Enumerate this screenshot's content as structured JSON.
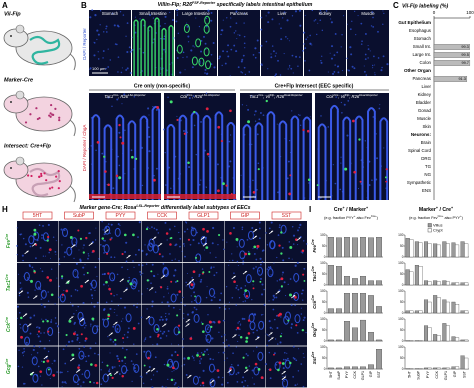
{
  "panel_letters": [
    "A",
    "B",
    "C",
    "D",
    "E",
    "F",
    "G",
    "H",
    "I"
  ],
  "panel_a": {
    "labels": [
      "Vil-Flp",
      "Marker-Cre",
      "Intersect: Cre+Flp"
    ]
  },
  "panel_b": {
    "title": [
      [
        "Villin-Flp; R26",
        "FSF-Reporter"
      ],
      [
        " specifically labels intestinal epithelium"
      ]
    ],
    "tissues": [
      "Stomach",
      "Small Intestine",
      "Large Intestine",
      "Pancreas",
      "Liver",
      "Kidney",
      "Muscle"
    ],
    "y_label": "DAPI / Reporter",
    "scale_bar": "100 µm"
  },
  "panel_c": {
    "type": "bar",
    "title": "Vil-Flp labeling (%)",
    "xlim": [
      0,
      100
    ],
    "xticks": [
      0,
      100
    ],
    "color": "#bbbbbb",
    "groups": [
      {
        "label": "Gut Epithelium",
        "categories": [
          "Esophagus",
          "Stomach",
          "Small Int.",
          "Large Int.",
          "Colon"
        ],
        "values": [
          0,
          0,
          99.3,
          99.5,
          99.7
        ]
      },
      {
        "label": "Other Organ",
        "categories": [
          "Pancreas",
          "Liver",
          "Kidney",
          "Bladder",
          "Gonad",
          "Muscle",
          "Skin"
        ],
        "values": [
          91.3,
          0,
          0,
          0,
          0,
          0,
          0
        ]
      },
      {
        "label": "Neurons:",
        "categories": [
          "Brain",
          "Spinal Cord",
          "DRG",
          "TG",
          "NG",
          "Sympathetic",
          "ENS"
        ],
        "values": [
          0,
          0,
          0,
          0,
          0,
          0,
          0
        ]
      }
    ]
  },
  "panel_dg": {
    "headers": [
      "Cre only (non-specific)",
      "Cre+Flp Intersect (EEC specific)"
    ],
    "captions": [
      [
        [
          "Tac1",
          "Cre"
        ],
        [
          "; R26",
          "LSL-Reporter"
        ]
      ],
      [
        [
          "Cck",
          "Cre"
        ],
        [
          "; R26",
          "LSL-Reporter"
        ]
      ],
      [
        [
          "Tac1",
          "Cre"
        ],
        [
          "; Vil",
          "Flp"
        ],
        [
          "; R26",
          "Dual-Reporter"
        ]
      ],
      [
        [
          "Cck",
          "Cre"
        ],
        [
          "; Vil",
          "Flp"
        ],
        [
          "; R26",
          "Dual-Reporter"
        ]
      ]
    ],
    "y_label": "DAPI / Reporter / ChgA"
  },
  "panel_h": {
    "title": [
      [
        "Marker gene-Cre; Rosa",
        "LSL-Reporter"
      ],
      [
        " differentially label subtypes of EECs"
      ]
    ],
    "columns": [
      "5HT",
      "SubP",
      "PYY",
      "CCK",
      "GLP1",
      "GIP",
      "SST"
    ],
    "rows": [
      [
        [
          "Fev",
          "Cre"
        ]
      ],
      [
        [
          "Tac1",
          "Cre"
        ]
      ],
      [
        [
          "Cck",
          "Cre"
        ]
      ],
      [
        [
          "Gcg",
          "Cre"
        ]
      ]
    ]
  },
  "panel_i": {
    "type": "bar",
    "headers": [
      [
        [
          "Cre",
          "+"
        ],
        [
          " / Marker",
          "+"
        ]
      ],
      [
        [
          "Marker",
          "+"
        ],
        [
          " / Cre",
          "+"
        ]
      ]
    ],
    "subtitles": [
      [
        [
          "(e.g. fraction PYY",
          "+"
        ],
        [
          " also Fev",
          "Cre+"
        ],
        [
          ")"
        ]
      ],
      [
        [
          "(e.g. fraction Fev",
          "Cre+"
        ],
        [
          " also PYY",
          "+"
        ],
        [
          ")"
        ]
      ]
    ],
    "categories": [
      "5HT",
      "SubP",
      "PYY",
      "CCK",
      "GLP1",
      "GIP",
      "SST"
    ],
    "ylim": [
      0,
      100
    ],
    "yticks": [
      0,
      50,
      100
    ],
    "left_color": "#999999",
    "series": [
      {
        "name": "Villus",
        "color": "#999999"
      },
      {
        "name": "Crypt",
        "color": "#ffffff"
      }
    ],
    "rows": [
      {
        "label": [
          [
            "Fev",
            "Cre"
          ]
        ],
        "left": [
          90,
          88,
          90,
          88,
          90,
          88,
          90
        ],
        "right": [
          [
            85,
            70,
            70,
            60,
            70,
            65,
            70
          ],
          [
            80,
            65,
            60,
            55,
            60,
            55,
            60
          ]
        ]
      },
      {
        "label": [
          [
            "Tac1",
            "Cre"
          ]
        ],
        "left": [
          90,
          85,
          40,
          30,
          40,
          20,
          20
        ],
        "right": [
          [
            70,
            90,
            20,
            20,
            20,
            10,
            10
          ],
          [
            60,
            85,
            15,
            15,
            15,
            10,
            10
          ]
        ]
      },
      {
        "label": [
          [
            "Cck",
            "Cre"
          ]
        ],
        "left": [
          20,
          20,
          90,
          90,
          90,
          80,
          30
        ],
        "right": [
          [
            10,
            10,
            60,
            80,
            60,
            50,
            10
          ],
          [
            10,
            10,
            50,
            70,
            50,
            40,
            10
          ]
        ]
      },
      {
        "label": [
          [
            "Gcg",
            "Cre"
          ]
        ],
        "left": [
          5,
          5,
          90,
          60,
          95,
          40,
          5
        ],
        "right": [
          [
            2,
            2,
            70,
            30,
            80,
            20,
            5
          ],
          [
            2,
            2,
            60,
            25,
            70,
            15,
            5
          ]
        ]
      },
      {
        "label": [
          [
            "Sst",
            "Cre"
          ]
        ],
        "left": [
          5,
          5,
          10,
          10,
          10,
          20,
          90
        ],
        "right": [
          [
            2,
            2,
            5,
            5,
            5,
            10,
            60
          ],
          [
            2,
            2,
            5,
            5,
            5,
            10,
            50
          ]
        ]
      }
    ]
  }
}
